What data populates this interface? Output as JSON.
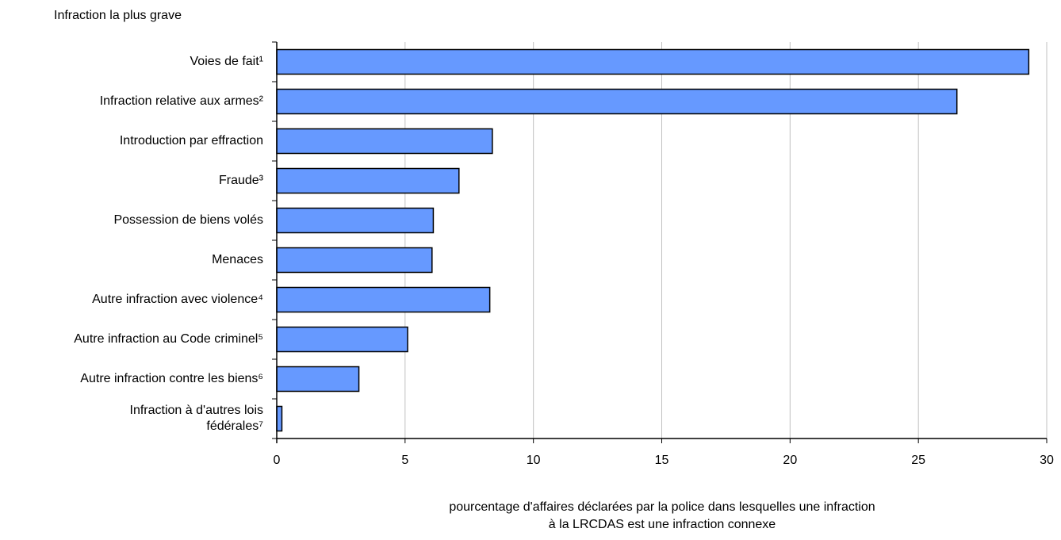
{
  "chart_data": {
    "type": "bar",
    "orientation": "horizontal",
    "title": "Infraction la plus grave",
    "xlabel_lines": [
      "pourcentage d'affaires déclarées par la police dans lesquelles une infraction",
      "à la LRCDAS est une infraction connexe"
    ],
    "ylabel": "",
    "xlim": [
      0,
      30
    ],
    "x_ticks": [
      0,
      5,
      10,
      15,
      20,
      25,
      30
    ],
    "grid": "vertical",
    "legend": "none",
    "categories": [
      [
        "Voies de fait¹"
      ],
      [
        "Infraction relative aux armes²"
      ],
      [
        "Introduction par effraction"
      ],
      [
        "Fraude³"
      ],
      [
        "Possession de biens volés"
      ],
      [
        "Menaces"
      ],
      [
        "Autre infraction avec violence⁴"
      ],
      [
        "Autre infraction au Code criminel⁵"
      ],
      [
        "Autre infraction contre les biens⁶"
      ],
      [
        "Infraction à d'autres lois",
        "fédérales⁷"
      ]
    ],
    "values": [
      29.3,
      26.5,
      8.4,
      7.1,
      6.1,
      6.05,
      8.3,
      5.1,
      3.2,
      0.2
    ],
    "colors": {
      "bar_fill": "#6699ff",
      "bar_stroke": "#000000",
      "grid": "#c0c0c0",
      "axis": "#000000"
    }
  }
}
